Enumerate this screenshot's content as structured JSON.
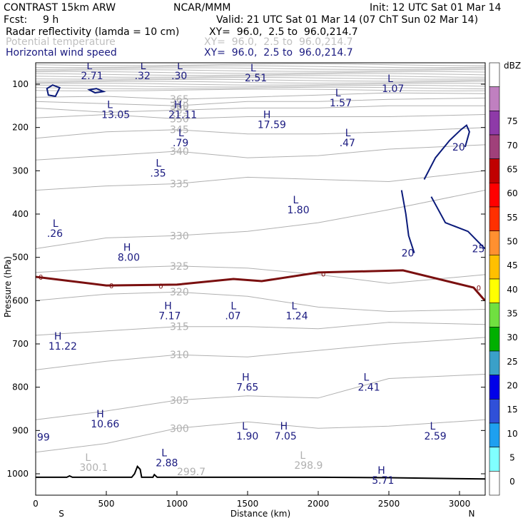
{
  "header": {
    "model": "CONTRAST 15km ARW",
    "center": "NCAR/MMM",
    "init": "Init: 12 UTC Sat 01 Mar 14",
    "fcst_label": "Fcst:",
    "fcst_value": "9 h",
    "valid": "Valid: 21 UTC Sat 01 Mar 14 (07 ChT Sun 02 Mar 14)",
    "fields": [
      {
        "name": "Radar reflectivity (lamda = 10 cm)",
        "xy": "XY=  96.0,  2.5 to  96.0,214.7",
        "color": "#000000"
      },
      {
        "name": "Potential temperature",
        "xy": "XY=  96.0,  2.5 to  96.0,214.7",
        "color": "#c0c0c0"
      },
      {
        "name": "Horizontal wind speed",
        "xy": "XY=  96.0,  2.5 to  96.0,214.7",
        "color": "#1a1a80"
      }
    ]
  },
  "chart_data": {
    "type": "cross-section",
    "title": "CONTRAST 15km ARW",
    "xlabel": "Distance (km)",
    "ylabel": "Pressure (hPa)",
    "xlim": [
      0,
      3180
    ],
    "ylim": [
      1050,
      50
    ],
    "xticks": [
      "0",
      "500",
      "1000",
      "1500",
      "2000",
      "2500",
      "3000"
    ],
    "yticks": [
      "100",
      "200",
      "300",
      "400",
      "500",
      "600",
      "700",
      "800",
      "900",
      "1000"
    ],
    "x_endpoints": {
      "left": "S",
      "right": "N"
    },
    "theta_lines": [
      {
        "label": "365",
        "points": [
          [
            0,
            130
          ],
          [
            500,
            128
          ],
          [
            1000,
            135
          ],
          [
            1500,
            130
          ],
          [
            2000,
            125
          ],
          [
            2500,
            120
          ],
          [
            3180,
            122
          ]
        ]
      },
      {
        "label": "360",
        "points": [
          [
            0,
            140
          ],
          [
            500,
            145
          ],
          [
            1000,
            150
          ],
          [
            1500,
            140
          ],
          [
            2000,
            140
          ],
          [
            2500,
            135
          ],
          [
            3180,
            132
          ]
        ]
      },
      {
        "label": "355",
        "points": [
          [
            0,
            155
          ],
          [
            500,
            165
          ],
          [
            1000,
            160
          ],
          [
            1500,
            155
          ],
          [
            2000,
            155
          ],
          [
            2500,
            150
          ],
          [
            3180,
            150
          ]
        ]
      },
      {
        "label": "350",
        "points": [
          [
            0,
            178
          ],
          [
            500,
            170
          ],
          [
            1000,
            180
          ],
          [
            1500,
            175
          ],
          [
            2000,
            175
          ],
          [
            2500,
            175
          ],
          [
            3180,
            170
          ]
        ]
      },
      {
        "label": "345",
        "points": [
          [
            0,
            225
          ],
          [
            500,
            210
          ],
          [
            1000,
            205
          ],
          [
            1500,
            215
          ],
          [
            2000,
            215
          ],
          [
            2500,
            210
          ],
          [
            3180,
            200
          ]
        ]
      },
      {
        "label": "340",
        "points": [
          [
            0,
            275
          ],
          [
            500,
            265
          ],
          [
            1000,
            255
          ],
          [
            1500,
            270
          ],
          [
            2000,
            265
          ],
          [
            2500,
            250
          ],
          [
            3180,
            240
          ]
        ]
      },
      {
        "label": "335",
        "points": [
          [
            0,
            345
          ],
          [
            500,
            335
          ],
          [
            1000,
            330
          ],
          [
            1500,
            315
          ],
          [
            2000,
            320
          ],
          [
            2500,
            325
          ],
          [
            3180,
            300
          ]
        ]
      },
      {
        "label": "330",
        "points": [
          [
            0,
            480
          ],
          [
            500,
            455
          ],
          [
            1000,
            450
          ],
          [
            1500,
            440
          ],
          [
            2000,
            420
          ],
          [
            2500,
            390
          ],
          [
            3180,
            345
          ]
        ]
      },
      {
        "label": "325",
        "points": [
          [
            0,
            535
          ],
          [
            500,
            525
          ],
          [
            1000,
            520
          ],
          [
            1500,
            525
          ],
          [
            2000,
            540
          ],
          [
            2500,
            560
          ],
          [
            3180,
            540
          ]
        ]
      },
      {
        "label": "320",
        "points": [
          [
            0,
            600
          ],
          [
            500,
            585
          ],
          [
            1000,
            580
          ],
          [
            1500,
            590
          ],
          [
            2000,
            615
          ],
          [
            2500,
            625
          ],
          [
            3180,
            620
          ]
        ]
      },
      {
        "label": "315",
        "points": [
          [
            0,
            680
          ],
          [
            500,
            670
          ],
          [
            1000,
            660
          ],
          [
            1500,
            660
          ],
          [
            2000,
            665
          ],
          [
            2500,
            650
          ],
          [
            3180,
            655
          ]
        ]
      },
      {
        "label": "310",
        "points": [
          [
            0,
            760
          ],
          [
            500,
            740
          ],
          [
            1000,
            725
          ],
          [
            1500,
            730
          ],
          [
            2000,
            715
          ],
          [
            2500,
            700
          ],
          [
            3180,
            685
          ]
        ]
      },
      {
        "label": "305",
        "points": [
          [
            0,
            875
          ],
          [
            500,
            855
          ],
          [
            1000,
            830
          ],
          [
            1500,
            820
          ],
          [
            2000,
            825
          ],
          [
            2500,
            780
          ],
          [
            3180,
            770
          ]
        ]
      },
      {
        "label": "300",
        "points": [
          [
            0,
            950
          ],
          [
            500,
            930
          ],
          [
            1000,
            895
          ],
          [
            1500,
            880
          ],
          [
            2000,
            895
          ],
          [
            2500,
            890
          ],
          [
            3180,
            875
          ]
        ]
      }
    ],
    "zero_dbz_line": {
      "label": "0",
      "points": [
        [
          0,
          545
        ],
        [
          500,
          565
        ],
        [
          1000,
          563
        ],
        [
          1400,
          550
        ],
        [
          1600,
          555
        ],
        [
          2000,
          535
        ],
        [
          2600,
          530
        ],
        [
          3100,
          570
        ],
        [
          3180,
          600
        ]
      ]
    },
    "wind_contours": [
      {
        "label": "20",
        "points": [
          [
            2750,
            320
          ],
          [
            2830,
            270
          ],
          [
            2930,
            230
          ],
          [
            3010,
            205
          ],
          [
            3050,
            195
          ],
          [
            3070,
            210
          ],
          [
            3040,
            245
          ]
        ]
      },
      {
        "label": "25",
        "points": [
          [
            2800,
            360
          ],
          [
            2900,
            420
          ],
          [
            3060,
            440
          ],
          [
            3180,
            480
          ]
        ]
      },
      {
        "label": "20",
        "points": [
          [
            2590,
            345
          ],
          [
            2620,
            400
          ],
          [
            2640,
            450
          ],
          [
            2680,
            490
          ]
        ]
      },
      {
        "label": "",
        "points": [
          [
            80,
            110
          ],
          [
            120,
            102
          ],
          [
            170,
            108
          ],
          [
            140,
            128
          ],
          [
            90,
            125
          ]
        ]
      },
      {
        "label": "",
        "points": [
          [
            380,
            113
          ],
          [
            430,
            110
          ],
          [
            480,
            117
          ],
          [
            420,
            120
          ]
        ]
      }
    ],
    "annotations": [
      {
        "x": 320,
        "p": 65,
        "text": "L",
        "value": "2.71",
        "color": "#1a1a80"
      },
      {
        "x": 700,
        "p": 65,
        "text": "L",
        "value": ".32",
        "color": "#1a1a80"
      },
      {
        "x": 960,
        "p": 65,
        "text": "L",
        "value": ".30",
        "color": "#1a1a80"
      },
      {
        "x": 1480,
        "p": 70,
        "text": "L",
        "value": "2.51",
        "color": "#1a1a80"
      },
      {
        "x": 2450,
        "p": 95,
        "text": "L",
        "value": "1.07",
        "color": "#1a1a80"
      },
      {
        "x": 465,
        "p": 155,
        "text": "L",
        "value": "13.05",
        "color": "#1a1a80"
      },
      {
        "x": 940,
        "p": 155,
        "text": "H",
        "value": "21.11",
        "color": "#1a1a80"
      },
      {
        "x": 1570,
        "p": 178,
        "text": "H",
        "value": "17.59",
        "color": "#1a1a80"
      },
      {
        "x": 2080,
        "p": 128,
        "text": "L",
        "value": "1.57",
        "color": "#1a1a80"
      },
      {
        "x": 970,
        "p": 220,
        "text": "L",
        "value": ".79",
        "color": "#1a1a80"
      },
      {
        "x": 2150,
        "p": 220,
        "text": "L",
        "value": ".47",
        "color": "#1a1a80"
      },
      {
        "x": 810,
        "p": 290,
        "text": "L",
        "value": ".35",
        "color": "#1a1a80"
      },
      {
        "x": 1780,
        "p": 375,
        "text": "L",
        "value": "1.80",
        "color": "#1a1a80"
      },
      {
        "x": 80,
        "p": 430,
        "text": "L",
        "value": ".26",
        "color": "#1a1a80"
      },
      {
        "x": 580,
        "p": 485,
        "text": "H",
        "value": "8.00",
        "color": "#1a1a80"
      },
      {
        "x": 870,
        "p": 620,
        "text": "H",
        "value": "7.17",
        "color": "#1a1a80"
      },
      {
        "x": 1340,
        "p": 620,
        "text": "L",
        "value": ".07",
        "color": "#1a1a80"
      },
      {
        "x": 1770,
        "p": 620,
        "text": "L",
        "value": "1.24",
        "color": "#1a1a80"
      },
      {
        "x": 90,
        "p": 690,
        "text": "H",
        "value": "11.22",
        "color": "#1a1a80"
      },
      {
        "x": 1420,
        "p": 785,
        "text": "H",
        "value": "7.65",
        "color": "#1a1a80"
      },
      {
        "x": 2280,
        "p": 785,
        "text": "L",
        "value": "2.41",
        "color": "#1a1a80"
      },
      {
        "x": 390,
        "p": 870,
        "text": "H",
        "value": "10.66",
        "color": "#1a1a80"
      },
      {
        "x": 1420,
        "p": 898,
        "text": "L",
        "value": "1.90",
        "color": "#1a1a80"
      },
      {
        "x": 1690,
        "p": 898,
        "text": "H",
        "value": "7.05",
        "color": "#1a1a80"
      },
      {
        "x": 2750,
        "p": 898,
        "text": "L",
        "value": "2.59",
        "color": "#1a1a80"
      },
      {
        "x": 850,
        "p": 960,
        "text": "L",
        "value": "2.88",
        "color": "#1a1a80"
      },
      {
        "x": 2380,
        "p": 1000,
        "text": "H",
        "value": "5.71",
        "color": "#1a1a80"
      },
      {
        "x": 310,
        "p": 970,
        "text": "L",
        "value": "300.1",
        "color": "#b0b0b0"
      },
      {
        "x": 1000,
        "p": 980,
        "text": "",
        "value": "299.7",
        "color": "#b0b0b0"
      },
      {
        "x": 1830,
        "p": 965,
        "text": "L",
        "value": "298.9",
        "color": "#b0b0b0"
      },
      {
        "x": 10,
        "p": 900,
        "text": "",
        "value": "99",
        "color": "#1a1a80"
      }
    ],
    "terrain": {
      "points": [
        [
          0,
          1008
        ],
        [
          220,
          1008
        ],
        [
          240,
          1005
        ],
        [
          260,
          1008
        ],
        [
          680,
          1008
        ],
        [
          700,
          1000
        ],
        [
          720,
          983
        ],
        [
          740,
          990
        ],
        [
          750,
          1008
        ],
        [
          830,
          1008
        ],
        [
          840,
          1002
        ],
        [
          860,
          1008
        ],
        [
          1600,
          1008
        ],
        [
          2000,
          1008
        ],
        [
          2500,
          1009
        ],
        [
          3180,
          1012
        ]
      ]
    },
    "colorbar": {
      "unit": "dBZ",
      "levels": [
        "0",
        "5",
        "10",
        "15",
        "20",
        "25",
        "30",
        "35",
        "40",
        "45",
        "50",
        "55",
        "60",
        "65",
        "70",
        "75"
      ],
      "colors": [
        "#ffffff",
        "#80ffff",
        "#1ea0f0",
        "#3050d8",
        "#0000e8",
        "#3aa0c8",
        "#00b000",
        "#70e040",
        "#ffff00",
        "#ffc000",
        "#ff9030",
        "#ff3000",
        "#ff0000",
        "#c00000",
        "#a0407a",
        "#8e3aa8",
        "#c080c0",
        "#ffffff"
      ]
    }
  }
}
